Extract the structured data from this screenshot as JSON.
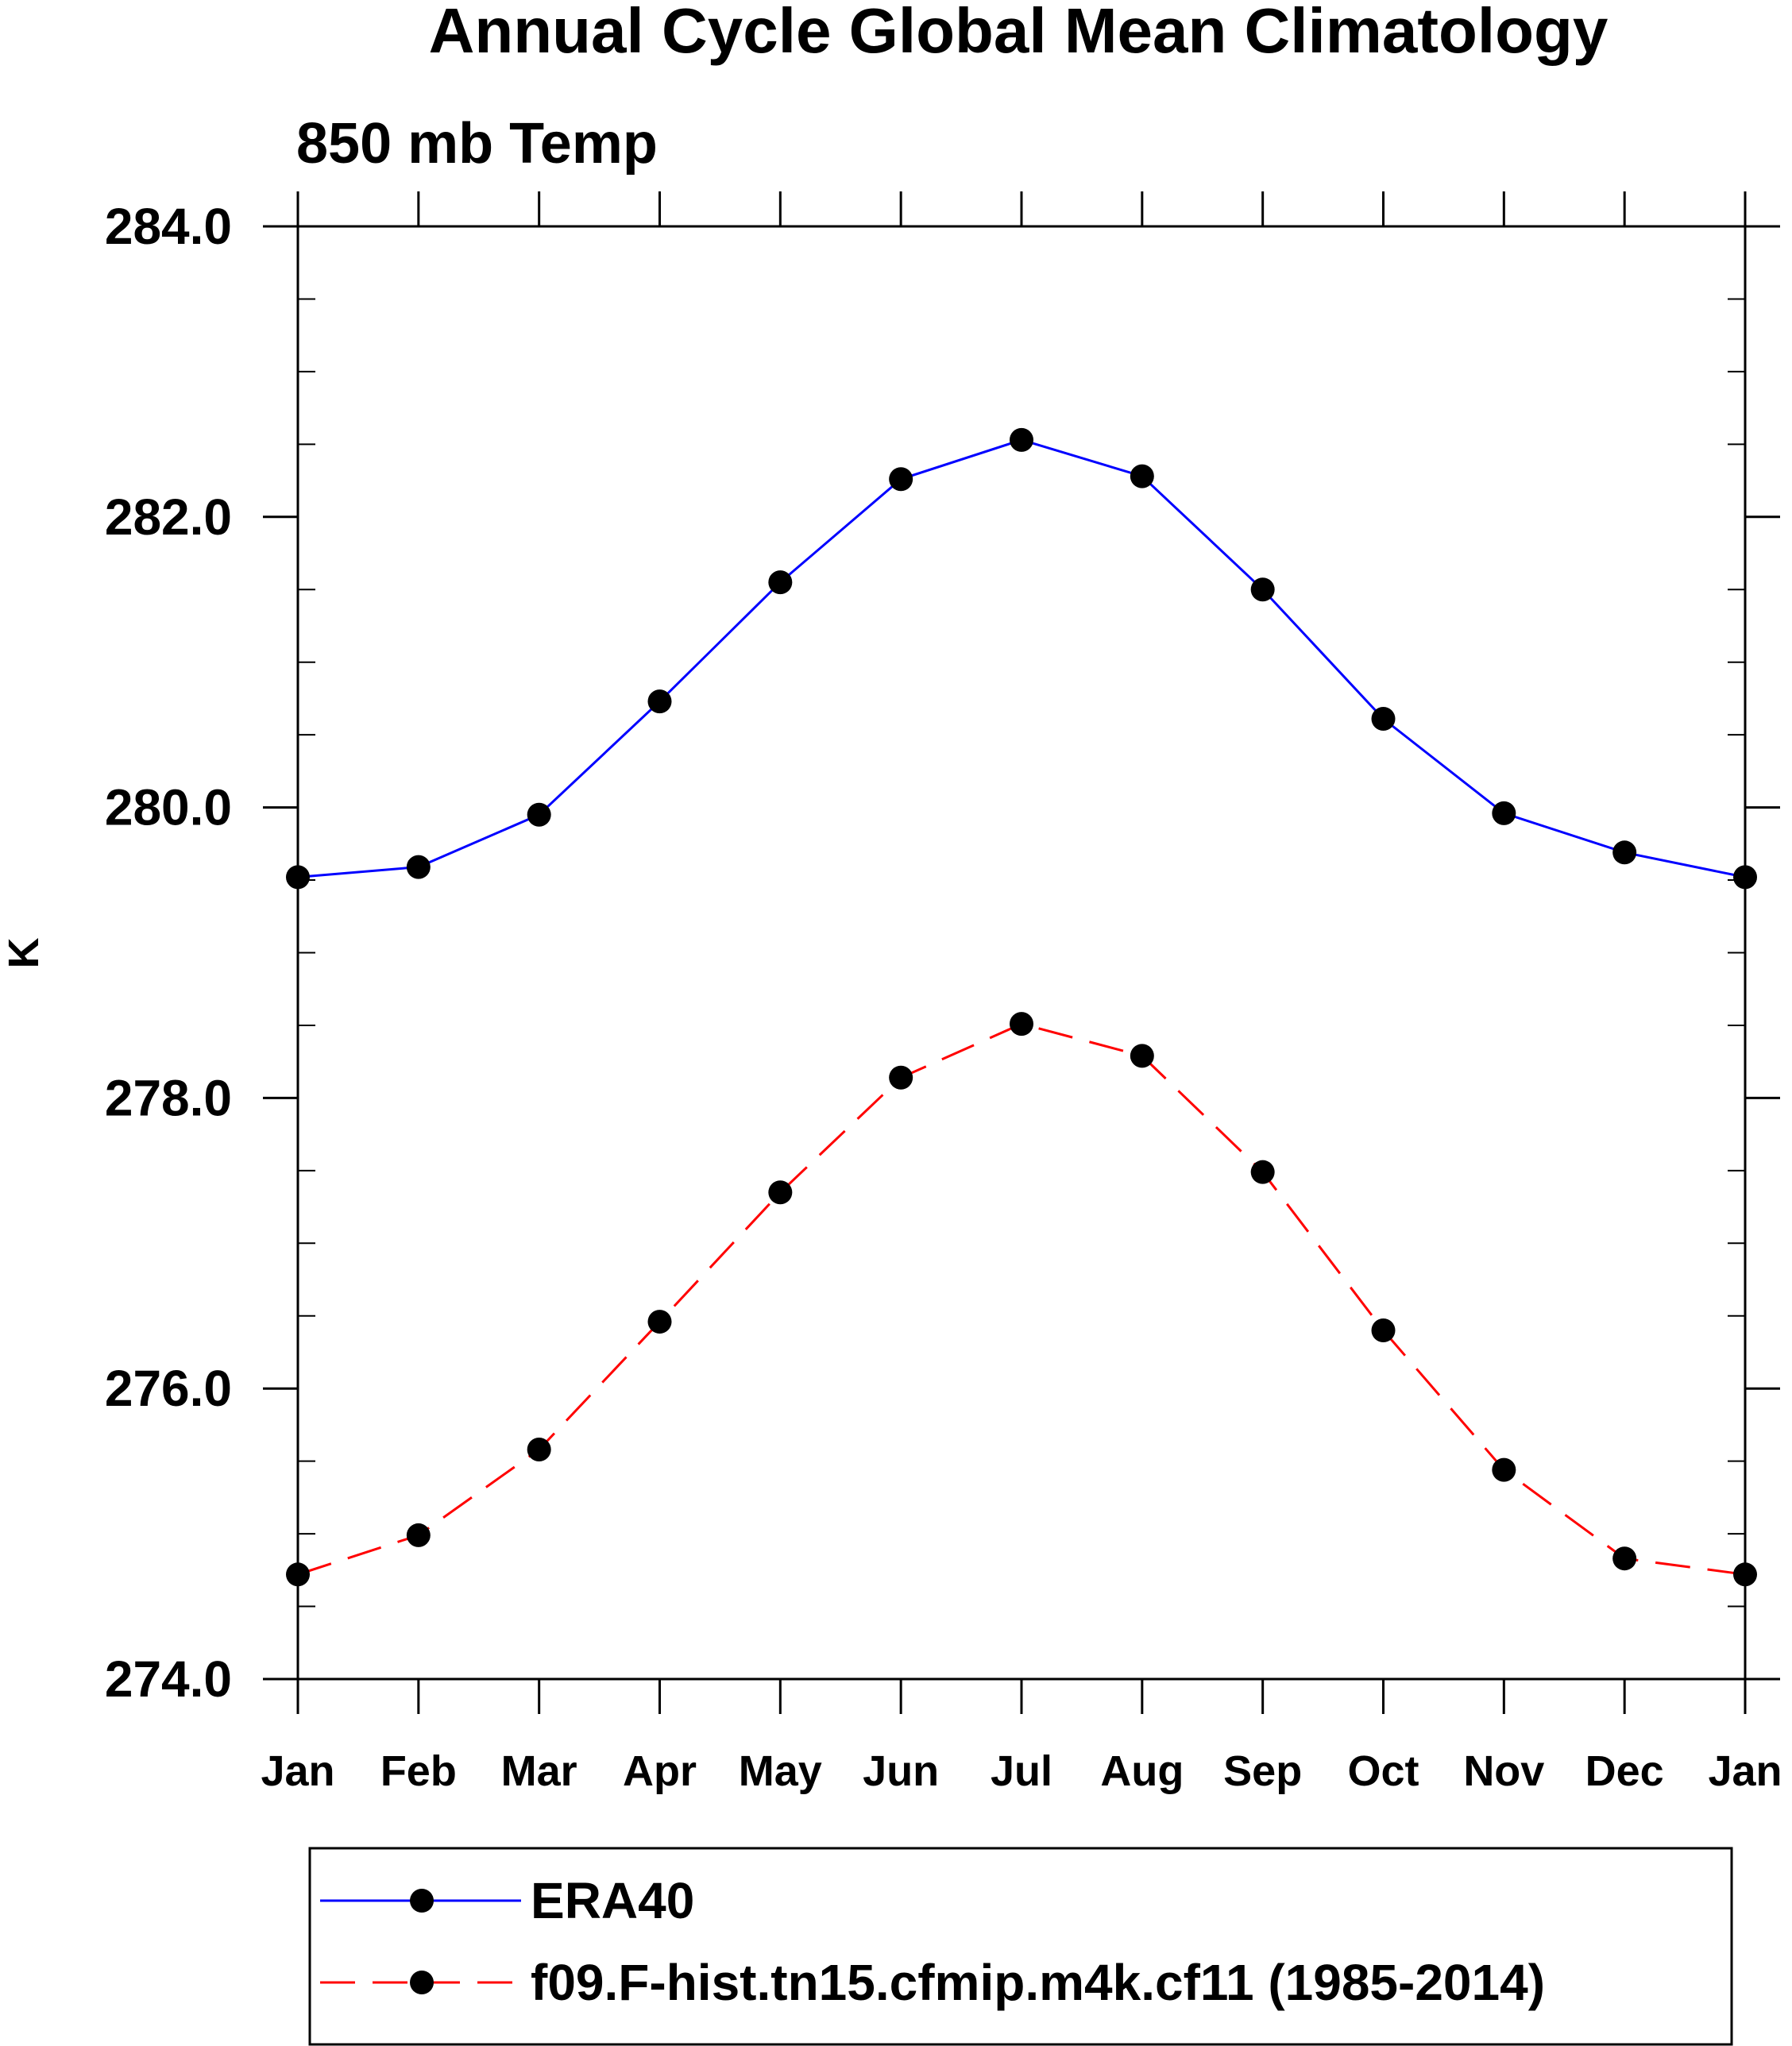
{
  "chart_data": {
    "type": "line",
    "title": "Annual Cycle Global Mean Climatology",
    "subtitle": "850 mb Temp",
    "xlabel": "",
    "ylabel": "K",
    "categories": [
      "Jan",
      "Feb",
      "Mar",
      "Apr",
      "May",
      "Jun",
      "Jul",
      "Aug",
      "Sep",
      "Oct",
      "Nov",
      "Dec",
      "Jan"
    ],
    "ylim": [
      274.0,
      284.0
    ],
    "yticks": [
      "274.0",
      "276.0",
      "278.0",
      "280.0",
      "282.0",
      "284.0"
    ],
    "y_minor_step": 0.5,
    "grid": false,
    "legend_position": "bottom",
    "series": [
      {
        "name": "ERA40",
        "color": "#0000ff",
        "line_style": "solid",
        "marker": "filled-circle",
        "values": [
          279.52,
          279.59,
          279.95,
          280.73,
          281.55,
          282.26,
          282.53,
          282.28,
          281.5,
          280.61,
          279.96,
          279.69,
          279.52
        ]
      },
      {
        "name": "f09.F-hist.tn15.cfmip.m4k.cf11 (1985-2014)",
        "color": "#ff0000",
        "line_style": "dashed",
        "marker": "filled-circle",
        "values": [
          274.72,
          274.99,
          275.58,
          276.46,
          277.35,
          278.14,
          278.51,
          278.29,
          277.49,
          276.4,
          275.44,
          274.83,
          274.72
        ]
      }
    ]
  }
}
